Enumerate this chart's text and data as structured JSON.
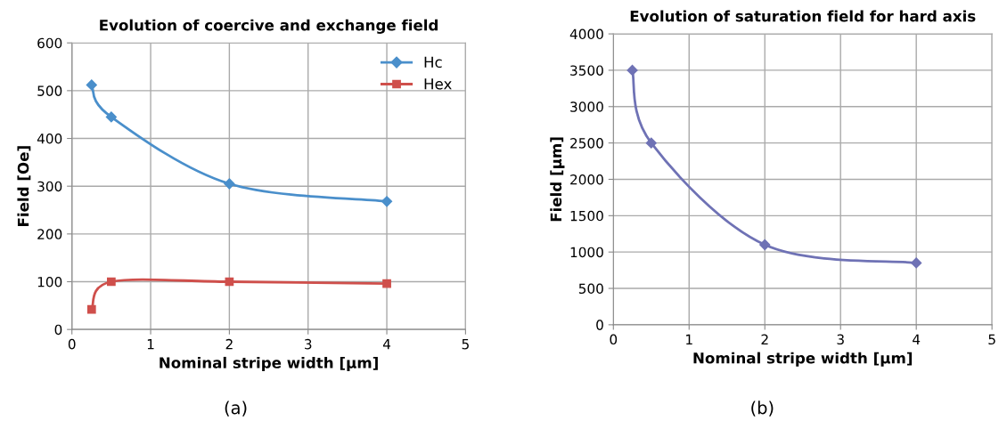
{
  "chart_data": [
    {
      "type": "line",
      "title": "Evolution of coercive and exchange field",
      "xlabel": "Nominal stripe width [µm]",
      "ylabel": "Field [Oe]",
      "x": [
        0.25,
        0.5,
        2,
        4
      ],
      "series": [
        {
          "name": "Hc",
          "color": "#4a8fcb",
          "marker": "diamond",
          "values": [
            512,
            445,
            305,
            268
          ]
        },
        {
          "name": "Hex",
          "color": "#cf4f4b",
          "marker": "square",
          "values": [
            42,
            100,
            100,
            96
          ]
        }
      ],
      "xlim": [
        0,
        5
      ],
      "xticks": [
        0,
        1,
        2,
        3,
        4,
        5
      ],
      "ylim": [
        0,
        600
      ],
      "yticks": [
        0,
        100,
        200,
        300,
        400,
        500,
        600
      ],
      "grid": true,
      "legend": "top right",
      "line_style": "solid",
      "annotations": [
        "(a)"
      ]
    },
    {
      "type": "line",
      "title": "Evolution of saturation field for hard axis",
      "xlabel": "Nominal stripe width [µm]",
      "ylabel": "Field [µm]",
      "x": [
        0.25,
        0.5,
        2,
        4
      ],
      "series": [
        {
          "color": "#6f72b5",
          "marker": "diamond",
          "values": [
            3500,
            2500,
            1100,
            850
          ]
        }
      ],
      "xlim": [
        0,
        5
      ],
      "xticks": [
        0,
        1,
        2,
        3,
        4,
        5
      ],
      "ylim": [
        0,
        4000
      ],
      "yticks": [
        0,
        500,
        1000,
        1500,
        2000,
        2500,
        3000,
        3500,
        4000
      ],
      "grid": true,
      "legend": false,
      "line_style": "solid",
      "annotations": [
        "(b)"
      ]
    }
  ]
}
